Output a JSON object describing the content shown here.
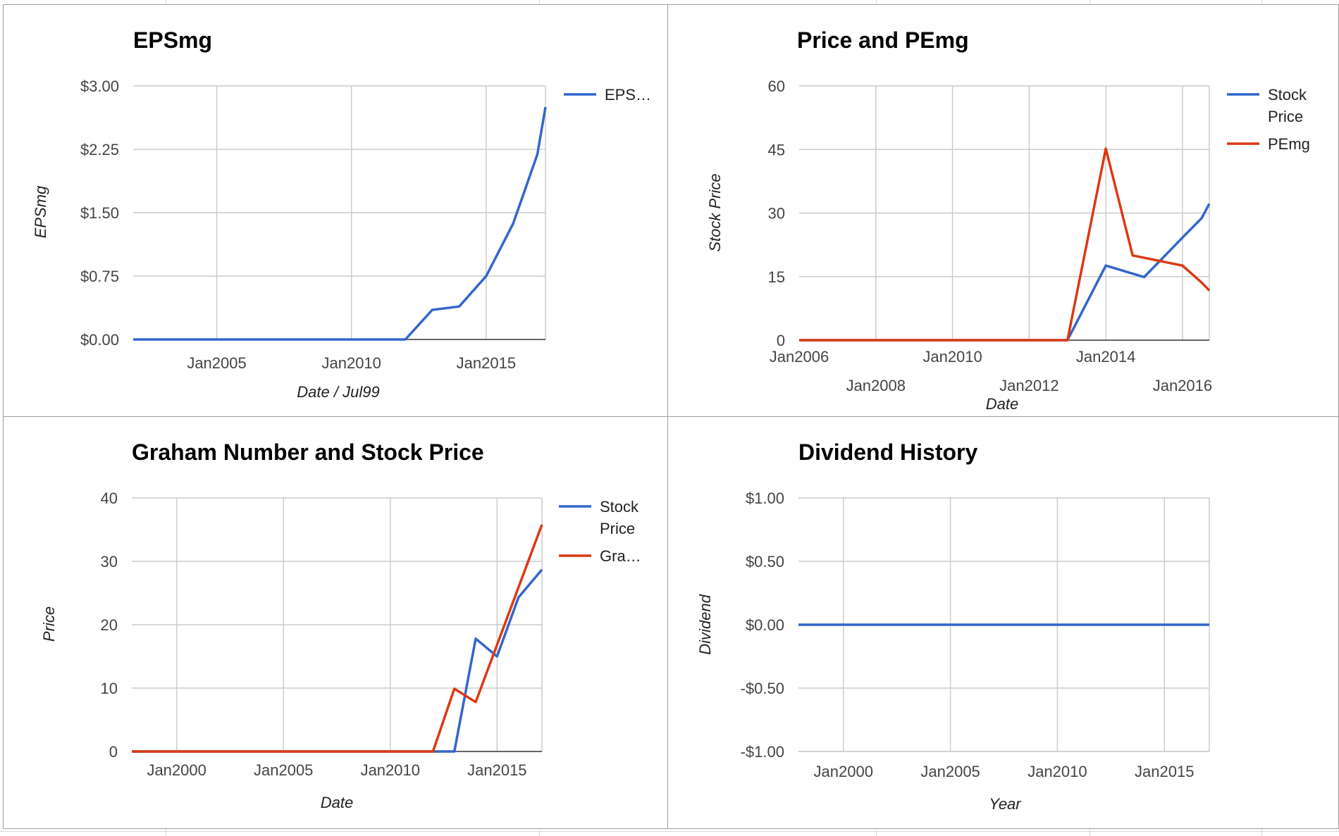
{
  "colors": {
    "blue": "#3366cc",
    "red": "#dc3912",
    "grid": "#cccccc"
  },
  "chart_data": [
    {
      "type": "line",
      "title": "EPSmg",
      "xlabel": "Date / Jul99",
      "ylabel": "EPSmg",
      "ylim": [
        0,
        3
      ],
      "xlim": [
        2001.9,
        2017.2
      ],
      "yticks": [
        "$0.00",
        "$0.75",
        "$1.50",
        "$2.25",
        "$3.00"
      ],
      "ytick_values": [
        0,
        0.75,
        1.5,
        2.25,
        3
      ],
      "xticks": [
        "Jan2005",
        "Jan2010",
        "Jan2015"
      ],
      "xtick_values": [
        2005,
        2010,
        2015
      ],
      "legend": "right",
      "grid": true,
      "series": [
        {
          "name": "EPS…",
          "color": "#3366cc",
          "x": [
            2001.9,
            2012,
            2013,
            2014,
            2015,
            2016,
            2016.9,
            2017.2
          ],
          "y": [
            0,
            0,
            0.35,
            0.39,
            0.75,
            1.37,
            2.19,
            2.75
          ]
        }
      ]
    },
    {
      "type": "line",
      "title": "Price and PEmg",
      "xlabel": "Date",
      "ylabel": "Stock Price",
      "ylim": [
        0,
        60
      ],
      "xlim": [
        2006,
        2016.7
      ],
      "yticks": [
        "0",
        "15",
        "30",
        "45",
        "60"
      ],
      "ytick_values": [
        0,
        15,
        30,
        45,
        60
      ],
      "xticks": [
        "Jan2006",
        "Jan2008",
        "Jan2010",
        "Jan2012",
        "Jan2014",
        "Jan2016"
      ],
      "xtick_values": [
        2006,
        2008,
        2010,
        2012,
        2014,
        2016
      ],
      "legend": "right",
      "grid": true,
      "series": [
        {
          "name": "Stock Price",
          "color": "#3366cc",
          "x": [
            2006,
            2013,
            2014,
            2015,
            2016,
            2016.5,
            2016.7
          ],
          "y": [
            0,
            0,
            17.6,
            14.9,
            24.2,
            28.8,
            32.2
          ]
        },
        {
          "name": "PEmg",
          "color": "#dc3912",
          "x": [
            2006,
            2013,
            2014,
            2014.7,
            2016,
            2016.5,
            2016.7
          ],
          "y": [
            0,
            0,
            45.2,
            20,
            17.6,
            13.6,
            11.7
          ]
        }
      ]
    },
    {
      "type": "line",
      "title": "Graham Number and Stock Price",
      "xlabel": "Date",
      "ylabel": "Price",
      "ylim": [
        0,
        40
      ],
      "xlim": [
        1997.9,
        2017.1
      ],
      "yticks": [
        "0",
        "10",
        "20",
        "30",
        "40"
      ],
      "ytick_values": [
        0,
        10,
        20,
        30,
        40
      ],
      "xticks": [
        "Jan2000",
        "Jan2005",
        "Jan2010",
        "Jan2015"
      ],
      "xtick_values": [
        2000,
        2005,
        2010,
        2015
      ],
      "legend": "right",
      "grid": true,
      "series": [
        {
          "name": "Stock Price",
          "color": "#3366cc",
          "x": [
            1997.9,
            2013,
            2014,
            2015,
            2016,
            2017.1
          ],
          "y": [
            0,
            0,
            17.8,
            15,
            24.3,
            28.7
          ]
        },
        {
          "name": "Gra…",
          "color": "#dc3912",
          "x": [
            1997.9,
            2012,
            2013,
            2014,
            2017.1
          ],
          "y": [
            0,
            0,
            9.9,
            7.8,
            35.8
          ]
        }
      ]
    },
    {
      "type": "line",
      "title": "Dividend History",
      "xlabel": "Year",
      "ylabel": "Dividend",
      "ylim": [
        -1,
        1
      ],
      "xlim": [
        1997.9,
        2017.1
      ],
      "yticks": [
        "-$1.00",
        "-$0.50",
        "$0.00",
        "$0.50",
        "$1.00"
      ],
      "ytick_values": [
        -1,
        -0.5,
        0,
        0.5,
        1
      ],
      "xticks": [
        "Jan2000",
        "Jan2005",
        "Jan2010",
        "Jan2015"
      ],
      "xtick_values": [
        2000,
        2005,
        2010,
        2015
      ],
      "legend": "none",
      "grid": true,
      "series": [
        {
          "color": "#3366cc",
          "x": [
            1997.9,
            2017.1
          ],
          "y": [
            0,
            0
          ]
        }
      ]
    }
  ]
}
